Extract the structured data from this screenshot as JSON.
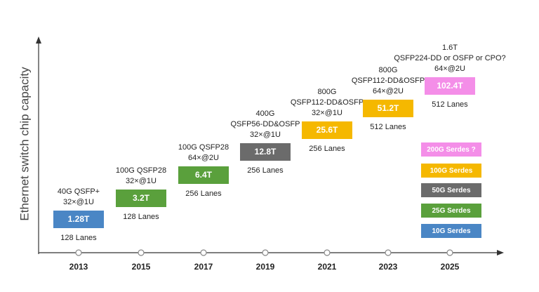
{
  "y_axis_label": "Ethernet switch chip capacity",
  "years": [
    "2013",
    "2015",
    "2017",
    "2019",
    "2021",
    "2023",
    "2025"
  ],
  "milestones": [
    {
      "above": [
        "40G QSFP+",
        "32×@1U"
      ],
      "capacity": "1.28T",
      "color": "#4a86c5",
      "below": "128 Lanes"
    },
    {
      "above": [
        "100G QSFP28",
        "32×@1U"
      ],
      "capacity": "3.2T",
      "color": "#5aa03c",
      "below": "128 Lanes"
    },
    {
      "above": [
        "100G QSFP28",
        "64×@2U"
      ],
      "capacity": "6.4T",
      "color": "#5aa03c",
      "below": "256 Lanes"
    },
    {
      "above": [
        "400G",
        "QSFP56-DD&OSFP",
        "32×@1U"
      ],
      "capacity": "12.8T",
      "color": "#6b6b6b",
      "below": "256 Lanes"
    },
    {
      "above": [
        "800G",
        "QSFP112-DD&OSFP",
        "32×@1U"
      ],
      "capacity": "25.6T",
      "color": "#f5b800",
      "below": "256 Lanes"
    },
    {
      "above": [
        "800G",
        "QSFP112-DD&OSFP",
        "64×@2U"
      ],
      "capacity": "51.2T",
      "color": "#f5b800",
      "below": "512 Lanes"
    },
    {
      "above": [
        "1.6T",
        "QSFP224-DD or OSFP or CPO?",
        "64×@2U"
      ],
      "capacity": "102.4T",
      "color": "#f48ee8",
      "below": "512 Lanes"
    }
  ],
  "legend": [
    {
      "label": "200G Serdes ?",
      "color": "#f48ee8"
    },
    {
      "label": "100G Serdes",
      "color": "#f5b800"
    },
    {
      "label": "50G Serdes",
      "color": "#6b6b6b"
    },
    {
      "label": "25G Serdes",
      "color": "#5aa03c"
    },
    {
      "label": "10G Serdes",
      "color": "#4a86c5"
    }
  ]
}
